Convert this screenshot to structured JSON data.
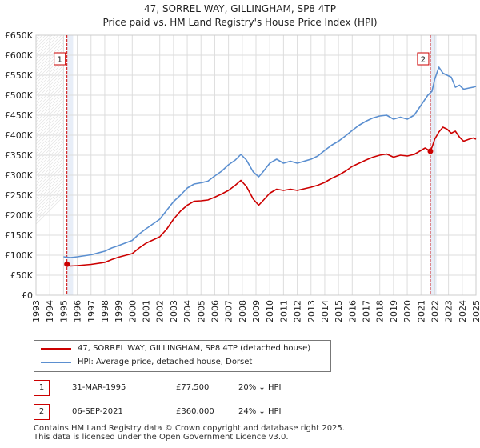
{
  "chart_data": {
    "type": "line",
    "title": "47, SORREL WAY, GILLINGHAM, SP8 4TP",
    "subtitle": "Price paid vs. HM Land Registry's House Price Index (HPI)",
    "xlim": [
      1993,
      2025
    ],
    "ylim": [
      0,
      650000
    ],
    "y_ticks": [
      {
        "value": 0,
        "label": "£0"
      },
      {
        "value": 50000,
        "label": "£50K"
      },
      {
        "value": 100000,
        "label": "£100K"
      },
      {
        "value": 150000,
        "label": "£150K"
      },
      {
        "value": 200000,
        "label": "£200K"
      },
      {
        "value": 250000,
        "label": "£250K"
      },
      {
        "value": 300000,
        "label": "£300K"
      },
      {
        "value": 350000,
        "label": "£350K"
      },
      {
        "value": 400000,
        "label": "£400K"
      },
      {
        "value": 450000,
        "label": "£450K"
      },
      {
        "value": 500000,
        "label": "£500K"
      },
      {
        "value": 550000,
        "label": "£550K"
      },
      {
        "value": 600000,
        "label": "£600K"
      },
      {
        "value": 650000,
        "label": "£650K"
      }
    ],
    "x_ticks": [
      "1993",
      "1994",
      "1995",
      "1996",
      "1997",
      "1998",
      "1999",
      "2000",
      "2001",
      "2002",
      "2003",
      "2004",
      "2005",
      "2006",
      "2007",
      "2008",
      "2009",
      "2010",
      "2011",
      "2012",
      "2013",
      "2014",
      "2015",
      "2016",
      "2017",
      "2018",
      "2019",
      "2020",
      "2021",
      "2022",
      "2023",
      "2024",
      "2025"
    ],
    "grid": true,
    "series": [
      {
        "name": "47, SORREL WAY, GILLINGHAM, SP8 4TP (detached house)",
        "color": "#cc0000",
        "x": [
          1995.25,
          1995.5,
          1996,
          1997,
          1998,
          1998.5,
          1999,
          2000,
          2000.5,
          2001,
          2002,
          2002.5,
          2003,
          2003.5,
          2004,
          2004.5,
          2005,
          2005.5,
          2006,
          2006.5,
          2007,
          2007.5,
          2007.9,
          2008.3,
          2008.8,
          2009.2,
          2009.5,
          2010,
          2010.5,
          2011,
          2011.5,
          2012,
          2012.5,
          2013,
          2013.5,
          2014,
          2014.5,
          2015,
          2015.5,
          2016,
          2016.5,
          2017,
          2017.5,
          2018,
          2018.5,
          2019,
          2019.5,
          2020,
          2020.5,
          2021,
          2021.3,
          2021.68,
          2021.8,
          2022,
          2022.3,
          2022.6,
          2022.9,
          2023.2,
          2023.5,
          2023.8,
          2024.1,
          2024.5,
          2024.8,
          2025
        ],
        "values": [
          77500,
          73000,
          74000,
          77000,
          82000,
          89000,
          95000,
          104000,
          118000,
          130000,
          146000,
          165000,
          190000,
          210000,
          225000,
          235000,
          236000,
          238000,
          245000,
          253000,
          262000,
          275000,
          287000,
          272000,
          240000,
          225000,
          236000,
          255000,
          265000,
          262000,
          265000,
          262000,
          266000,
          270000,
          275000,
          282000,
          292000,
          300000,
          310000,
          322000,
          330000,
          338000,
          345000,
          350000,
          353000,
          345000,
          350000,
          348000,
          352000,
          362000,
          368000,
          360000,
          370000,
          390000,
          408000,
          420000,
          415000,
          405000,
          410000,
          395000,
          385000,
          390000,
          393000,
          390000
        ]
      },
      {
        "name": "HPI: Average price, detached house, Dorset",
        "color": "#5b8fd0",
        "x": [
          1995,
          1995.5,
          1996,
          1997,
          1998,
          1998.5,
          1999,
          2000,
          2000.5,
          2001,
          2002,
          2002.5,
          2003,
          2003.5,
          2004,
          2004.5,
          2005,
          2005.5,
          2006,
          2006.5,
          2007,
          2007.5,
          2007.9,
          2008.3,
          2008.8,
          2009.2,
          2009.5,
          2010,
          2010.5,
          2011,
          2011.5,
          2012,
          2012.5,
          2013,
          2013.5,
          2014,
          2014.5,
          2015,
          2015.5,
          2016,
          2016.5,
          2017,
          2017.5,
          2018,
          2018.5,
          2019,
          2019.5,
          2020,
          2020.5,
          2021,
          2021.5,
          2021.8,
          2022,
          2022.3,
          2022.6,
          2022.9,
          2023.2,
          2023.5,
          2023.8,
          2024.1,
          2024.5,
          2024.8,
          2025
        ],
        "values": [
          96000,
          94000,
          96000,
          101000,
          110000,
          118000,
          124000,
          137000,
          153000,
          166000,
          190000,
          212000,
          234000,
          250000,
          268000,
          278000,
          281000,
          285000,
          298000,
          310000,
          326000,
          338000,
          352000,
          338000,
          308000,
          296000,
          308000,
          330000,
          340000,
          330000,
          335000,
          330000,
          335000,
          340000,
          348000,
          362000,
          375000,
          385000,
          398000,
          412000,
          425000,
          435000,
          443000,
          448000,
          450000,
          440000,
          445000,
          440000,
          450000,
          475000,
          500000,
          510000,
          540000,
          570000,
          555000,
          550000,
          545000,
          520000,
          525000,
          515000,
          518000,
          520000,
          522000
        ]
      }
    ],
    "markers": [
      {
        "label": "1",
        "x": 1995.25,
        "price": 77500
      },
      {
        "label": "2",
        "x": 2021.68,
        "price": 360000
      }
    ]
  },
  "legend": {
    "property": "47, SORREL WAY, GILLINGHAM, SP8 4TP (detached house)",
    "hpi": "HPI: Average price, detached house, Dorset"
  },
  "transactions": [
    {
      "num": "1",
      "date": "31-MAR-1995",
      "price": "£77,500",
      "hpi": "20% ↓ HPI"
    },
    {
      "num": "2",
      "date": "06-SEP-2021",
      "price": "£360,000",
      "hpi": "24% ↓ HPI"
    }
  ],
  "footer": {
    "line1": "Contains HM Land Registry data © Crown copyright and database right 2025.",
    "line2": "This data is licensed under the Open Government Licence v3.0."
  },
  "colors": {
    "property": "#cc0000",
    "hpi": "#5b8fd0",
    "shade": "#e8eef8",
    "grid": "#dddddd"
  }
}
